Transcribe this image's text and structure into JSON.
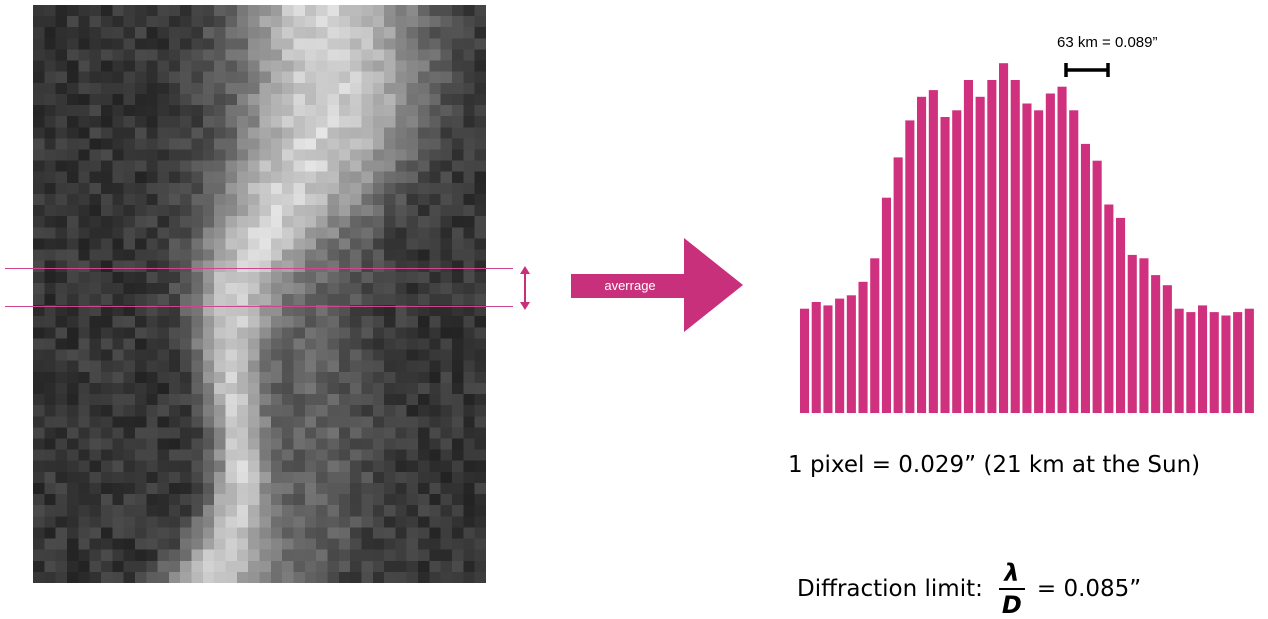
{
  "image_panel": {
    "description_icon": "grayscale-pixel-image"
  },
  "arrow": {
    "label": "averrage",
    "color": "#c8307c"
  },
  "chart_data": {
    "type": "bar",
    "color": "#d0317f",
    "values": [
      0.3,
      0.38,
      0.4,
      0.41,
      0.46,
      0.52,
      0.53,
      0.79,
      1.22,
      1.37,
      1.53,
      1.59,
      1.45,
      1.45,
      1.74,
      1.6,
      1.58,
      1.61,
      1.66,
      1.73,
      2.1,
      2.02,
      2.05,
      2.3,
      2.44,
      2.39,
      2.4,
      2.13,
      2.3,
      2.32,
      2.08,
      2.03,
      1.93,
      1.71,
      1.53,
      1.3,
      1.11,
      1.04,
      1.15,
      1.05,
      1.17,
      1.18
    ],
    "bar_values": [
      31,
      33,
      32,
      34,
      35,
      39,
      46,
      64,
      76,
      87,
      94,
      96,
      88,
      90,
      99,
      94,
      99,
      104,
      99,
      92,
      90,
      95,
      97,
      90,
      80,
      75,
      62,
      58,
      47,
      46,
      41,
      38,
      31,
      30,
      32,
      30,
      29,
      30,
      31
    ],
    "ylim": [
      0,
      110
    ],
    "annotation": "63 km = 0.089”"
  },
  "notes": {
    "pixel_scale": "1 pixel = 0.029” (21 km at the Sun)",
    "diffraction_label": "Diffraction limit:",
    "fraction_num": "λ",
    "fraction_den": "D",
    "diffraction_value": "= 0.085”"
  }
}
